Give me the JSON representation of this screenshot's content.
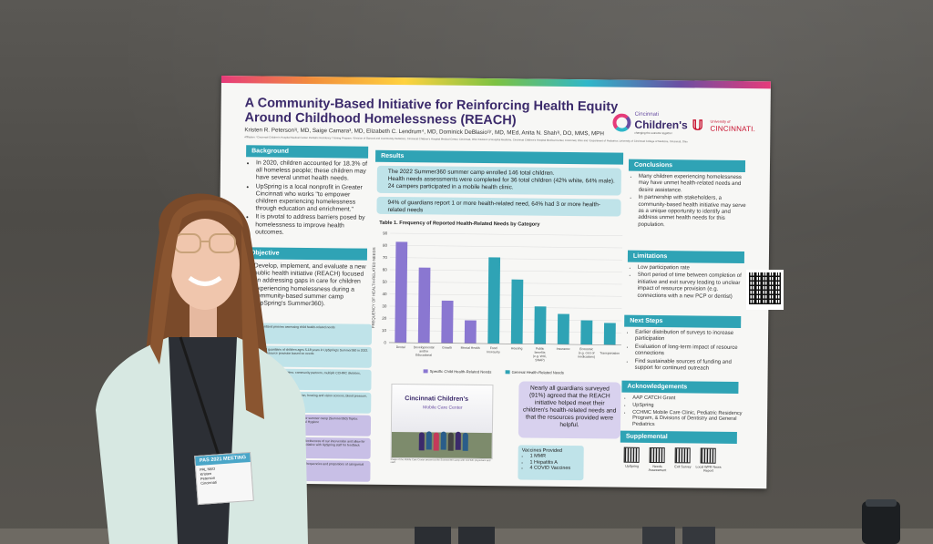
{
  "poster": {
    "title": "A Community-Based Initiative for Reinforcing Health Equity Around Childhood Homelessness (REACH)",
    "authors": "Kristen R. Peterson¹ʲ, MD, Saige Camara³, MD, Elizabeth C. Lendrum⁴, MD, Dominick DeBlasio¹ʲʳ, MD, MEd, Anita N. Shah¹ʲ, DO, MMS, MPH",
    "affiliations": "Affiliation: ¹Cincinnati Children's Hospital Medical Center Pediatric Residency Training Program, ²Division of General and Community Pediatrics, Cincinnati Children's Hospital Medical Center, Cincinnati, Ohio ³Division of Hospital Medicine, Cincinnati Children's Hospital Medical Center, Cincinnati, Ohio and ⁴Department of Pediatrics, University of Cincinnati College of Medicine, Cincinnati, Ohio",
    "logo_cc_small": "Cincinnati",
    "logo_cc_big": "Children's",
    "logo_cc_tag": "changing the outcome together",
    "logo_uc_small": "University of",
    "logo_uc_big": "CINCINNATI."
  },
  "background": {
    "header": "Background",
    "items": [
      "In 2020, children accounted for 18.3% of all homeless people; these children may have several unmet health needs.",
      "UpSpring is a local nonprofit in Greater Cincinnati who works \"to empower children experiencing homelessness through education and enrichment.\"",
      "It is pivotal to address barriers posed by homelessness to improve health outcomes."
    ]
  },
  "objective": {
    "header": "Objective",
    "text": "Develop, implement, and evaluate a new public health initiative (REACH) focused on addressing gaps in care for children experiencing homelessness during a community-based summer camp (UpSpring's Summer360)."
  },
  "methods": {
    "rows": [
      "Standardized process assessing child health-related needs",
      "Surveyed guardians of children ages 5-18 years in UpSpring's Summer360 in 2022. Tailored resource provision based on needs",
      "Connected with stakeholders: community partners, multiple CCHMC divisions, school leadership",
      "Services provided: fluoride application, hearing and vision screens, blood pressure, BMI evaluations, and vaccinations",
      "Provided UpSpring's community at their summer camp (Summer360) Topics: Height, Nutrition, Mental Health, Dental Hygiene",
      "Exit survey of guardians to evaluate effectiveness of our intervention and allow for feedback on the initiative. Discussed initiative with UpSpring staff for feedback",
      "Utilized descriptive statistics, including frequencies and proportions of categorical variables"
    ]
  },
  "results": {
    "header": "Results",
    "items": [
      "The 2022 Summer360 summer camp enrolled 146 total children.",
      "Health needs assessments were completed for 36 total children (42% white, 64% male).",
      "24 campers participated in a mobile health clinic."
    ],
    "box2": "94% of guardians report 1 or more health-related need, 64% had 3 or more health-related needs",
    "quote": "Nearly all guardians surveyed (91%) agreed that the REACH initiative helped meet their children's health-related needs and that the resources provided were helpful.",
    "photo_name": "Cincinnati Children's",
    "photo_sub": "Mobile Care Center",
    "caption": "Image of the Mobile Care Center present at the Summer360 camp with CCHMC physicians and staff.",
    "vaccines_title": "Vaccines Provided",
    "vaccines": [
      "1 MMR",
      "1 Hepatitis A",
      "4 COVID Vaccines"
    ]
  },
  "chart_data": {
    "type": "bar",
    "title": "Table 1. Frequency of Reported Health-Related Needs by Category",
    "ylabel": "FREQUENCY OF HEALTH-RELATED NEEDS",
    "ylim": [
      0,
      90
    ],
    "yticks": [
      0,
      10,
      20,
      30,
      40,
      50,
      60,
      70,
      80,
      90
    ],
    "categories": [
      "Dental",
      "Developmental and/or Educational",
      "Growth",
      "Mental Health",
      "Food Insecurity",
      "Housing",
      "Public benefits (e.g. WIC, SNAP)",
      "Insurance",
      "Economic (e.g. cost of medications)",
      "Transportation"
    ],
    "values": [
      83,
      62,
      35,
      19,
      71,
      53,
      31,
      25,
      20,
      18
    ],
    "series": [
      {
        "name": "Specific Child Health-Related Needs",
        "color": "#8a77d1"
      },
      {
        "name": "General Health-Related Needs",
        "color": "#2fa3b5"
      }
    ],
    "bar_series": [
      0,
      0,
      0,
      0,
      1,
      1,
      1,
      1,
      1,
      1
    ],
    "legend": "bottom"
  },
  "conclusions": {
    "header": "Conclusions",
    "items": [
      "Many children experiencing homelessness may have unmet health-related needs and desire assistance.",
      "In partnership with stakeholders, a community-based health initiative may serve as a unique opportunity to identify and address unmet health needs for this population."
    ]
  },
  "limitations": {
    "header": "Limitations",
    "items": [
      "Low participation rate",
      "Short period of time between completion of initiative and exit survey leading to unclear impact of resource provision (e.g. connections with a new PCP or dentist)"
    ]
  },
  "next_steps": {
    "header": "Next Steps",
    "items": [
      "Earlier distribution of surveys to increase participation",
      "Evaluation of long-term impact of resource connections",
      "Find sustainable sources of funding and support for continued outreach"
    ]
  },
  "acknowledgements": {
    "header": "Acknowledgements",
    "items": [
      "AAP CATCH Grant",
      "UpSpring",
      "CCHMC Mobile Care Clinic, Pediatric Residency Program, & Divisions of Dentistry and General Pediatrics"
    ]
  },
  "supplemental": {
    "header": "Supplemental",
    "qr_labels": [
      "UpSpring",
      "Needs Assessment",
      "Exit Survey",
      "Local WPR News Report"
    ]
  },
  "badge": {
    "header": "PAS 2021 MEETING",
    "lines": [
      "PAL NEO",
      "Kristen",
      "Peterson",
      "Cincinnati"
    ]
  },
  "colors": {
    "poster_purple": "#3b2a6b",
    "teal_header": "#2fa3b5",
    "light_teal_box": "#bfe3e9",
    "lavender_box": "#d8d1ee"
  }
}
